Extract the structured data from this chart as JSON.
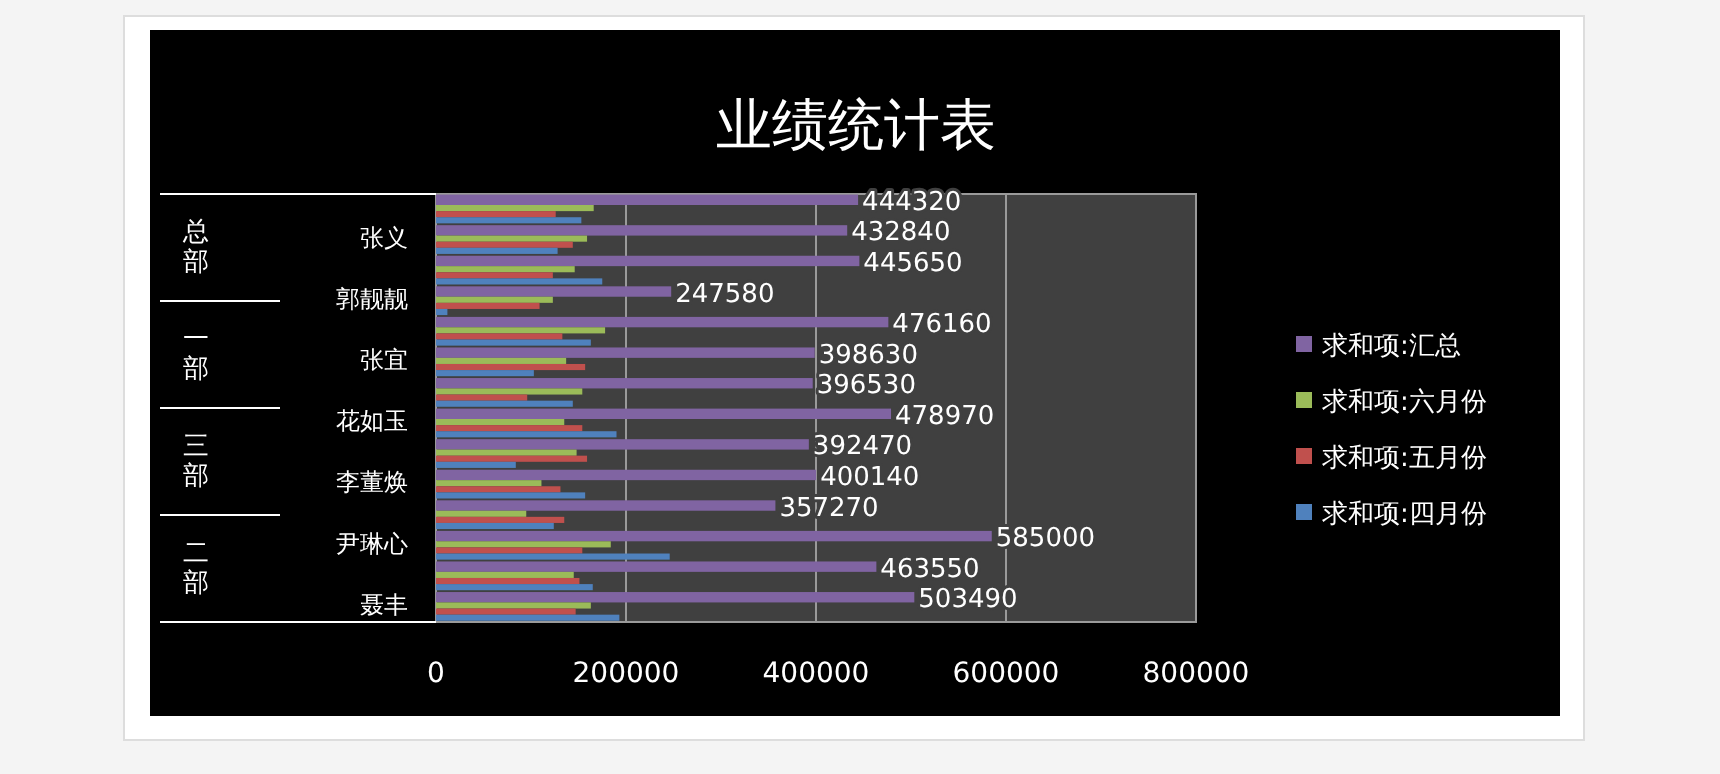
{
  "chart_data": {
    "type": "bar",
    "orientation": "horizontal",
    "title": "业绩统计表",
    "categories": [
      null,
      "张义",
      null,
      "郭靓靓",
      null,
      "张宜",
      null,
      "花如玉",
      null,
      "李董焕",
      null,
      "尹琳心",
      null,
      "聂丰"
    ],
    "series": [
      {
        "name": "求和项:汇总",
        "color": "#8064a2",
        "values": [
          444320,
          432840,
          445650,
          247580,
          476160,
          398630,
          396530,
          478970,
          392470,
          400140,
          357270,
          585000,
          463550,
          503490
        ],
        "value_labels": [
          "444320",
          "432840",
          "445650",
          "247580",
          "476160",
          "398630",
          "396530",
          "478970",
          "392470",
          "400140",
          "357270",
          "585000",
          "463550",
          "503490"
        ]
      },
      {
        "name": "求和项:六月份",
        "color": "#9bbb59",
        "values": [
          166000,
          159000,
          146000,
          123000,
          178000,
          137000,
          154000,
          135000,
          148000,
          111000,
          95000,
          184000,
          145000,
          163000
        ]
      },
      {
        "name": "求和项:五月份",
        "color": "#c0504d",
        "values": [
          126000,
          144000,
          123000,
          109000,
          133000,
          157000,
          96000,
          154000,
          159000,
          131000,
          135000,
          154000,
          151000,
          147000
        ]
      },
      {
        "name": "求和项:四月份",
        "color": "#4f81bd",
        "values": [
          153000,
          128000,
          175000,
          12000,
          163000,
          103000,
          144000,
          190000,
          84000,
          157000,
          124000,
          246000,
          165000,
          193000
        ]
      }
    ],
    "annotations": [
      "总部",
      "一部",
      "三部",
      "二部"
    ],
    "xlim": [
      0,
      800000
    ],
    "xticks": [
      0,
      200000,
      400000,
      600000,
      800000
    ],
    "grid": "x",
    "legend": "right"
  }
}
